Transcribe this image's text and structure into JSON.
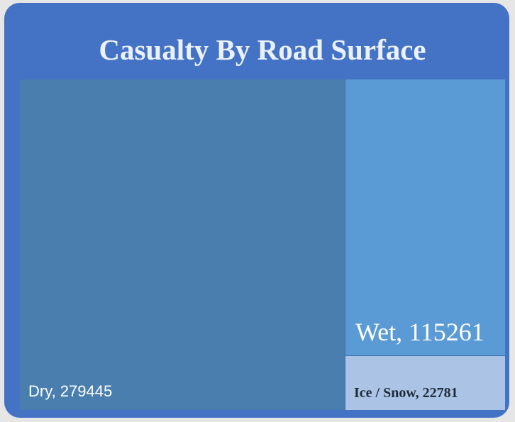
{
  "chart_data": {
    "type": "treemap",
    "title": "Casualty By Road Surface",
    "items": [
      {
        "name": "Dry",
        "value": 279445,
        "label": "Dry, 279445",
        "color": "#4a7eae"
      },
      {
        "name": "Wet",
        "value": 115261,
        "label": "Wet, 115261",
        "color": "#5b9bd5"
      },
      {
        "name": "Ice / Snow",
        "value": 22781,
        "label": "Ice / Snow, 22781",
        "color": "#abc4e5"
      }
    ],
    "background_color": "#4472c4",
    "title_color": "#eaf1fb"
  }
}
